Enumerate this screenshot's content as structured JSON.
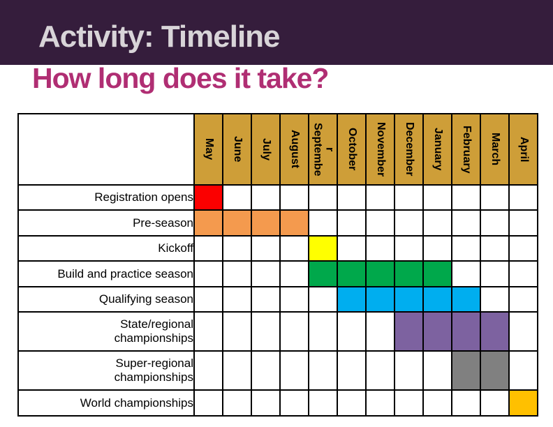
{
  "slide": {
    "title": "Activity: Timeline",
    "subtitle": "How long does it take?"
  },
  "colors": {
    "title_bar_bg": "#351D3C",
    "title_text": "#D8D4D8",
    "subtitle_text": "#B02E73",
    "month_header_bg": "#CE9E38",
    "month_header_text": "#000000",
    "grid_border": "#000000",
    "bar_red": "#FB0000",
    "bar_orange": "#F49A4E",
    "bar_yellow": "#FFFF00",
    "bar_green": "#00A84B",
    "bar_blue": "#00AEEF",
    "bar_purple": "#7D62A0",
    "bar_gray": "#808080",
    "bar_gold": "#FFC000"
  },
  "chart_data": {
    "type": "table",
    "title": "Activity: Timeline",
    "subtitle": "How long does it take?",
    "columns": [
      "May",
      "June",
      "July",
      "August",
      "September",
      "October",
      "November",
      "December",
      "January",
      "February",
      "March",
      "April"
    ],
    "rows": [
      {
        "label": "Registration opens",
        "start": "May",
        "end": "May",
        "color": "#FB0000"
      },
      {
        "label": "Pre-season",
        "start": "May",
        "end": "August",
        "color": "#F49A4E"
      },
      {
        "label": "Kickoff",
        "start": "September",
        "end": "September",
        "color": "#FFFF00"
      },
      {
        "label": "Build and practice season",
        "start": "September",
        "end": "January",
        "color": "#00A84B"
      },
      {
        "label": "Qualifying season",
        "start": "October",
        "end": "February",
        "color": "#00AEEF"
      },
      {
        "label": "State/regional championships",
        "start": "December",
        "end": "March",
        "color": "#7D62A0"
      },
      {
        "label": "Super-regional championships",
        "start": "February",
        "end": "March",
        "color": "#808080"
      },
      {
        "label": "World championships",
        "start": "April",
        "end": "April",
        "color": "#FFC000"
      }
    ],
    "layout_hints": {
      "orientation": "gantt-grid",
      "month_headers_rotated": true,
      "grid": true
    }
  }
}
